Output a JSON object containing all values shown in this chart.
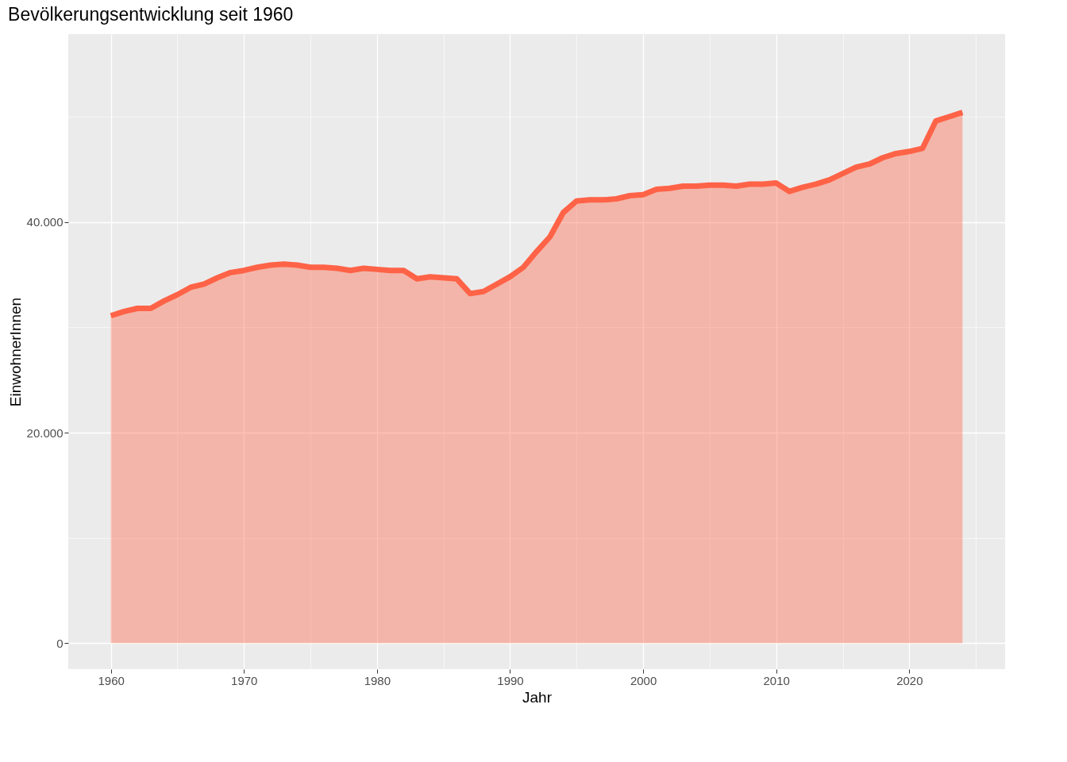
{
  "chart_data": {
    "type": "area",
    "title": "Bevölkerungsentwicklung seit 1960",
    "xlabel": "Jahr",
    "ylabel": "EinwohnerInnen",
    "x": [
      1960,
      1961,
      1962,
      1963,
      1964,
      1965,
      1966,
      1967,
      1968,
      1969,
      1970,
      1971,
      1972,
      1973,
      1974,
      1975,
      1976,
      1977,
      1978,
      1979,
      1980,
      1981,
      1982,
      1983,
      1984,
      1985,
      1986,
      1987,
      1988,
      1989,
      1990,
      1991,
      1992,
      1993,
      1994,
      1995,
      1996,
      1997,
      1998,
      1999,
      2000,
      2001,
      2002,
      2003,
      2004,
      2005,
      2006,
      2007,
      2008,
      2009,
      2010,
      2011,
      2012,
      2013,
      2014,
      2015,
      2016,
      2017,
      2018,
      2019,
      2020,
      2021,
      2022,
      2023,
      2024
    ],
    "series": [
      {
        "color": "#ff6347",
        "values": [
          31100,
          31500,
          31800,
          31800,
          32500,
          33100,
          33800,
          34100,
          34700,
          35200,
          35400,
          35700,
          35900,
          36000,
          35900,
          35700,
          35700,
          35600,
          35400,
          35600,
          35500,
          35400,
          35400,
          34600,
          34800,
          34700,
          34600,
          33200,
          33400,
          34100,
          34800,
          35700,
          37200,
          38600,
          40900,
          42000,
          42100,
          42100,
          42200,
          42500,
          42600,
          43100,
          43200,
          43400,
          43400,
          43500,
          43500,
          43400,
          43600,
          43600,
          43700,
          42900,
          43300,
          43600,
          44000,
          44600,
          45200,
          45500,
          46100,
          46500,
          46700,
          47000,
          49600,
          50000,
          50400
        ]
      }
    ],
    "xlim": [
      1956.8,
      2027.2
    ],
    "ylim": [
      -2460,
      57840
    ],
    "xticks": [
      1960,
      {
        "value": 1965,
        "label": null
      },
      1970,
      {
        "value": 1975,
        "label": null
      },
      1980,
      {
        "value": 1985,
        "label": null
      },
      1990,
      {
        "value": 1995,
        "label": null
      },
      2000,
      {
        "value": 2005,
        "label": null
      },
      2010,
      {
        "value": 2015,
        "label": null
      },
      2020,
      {
        "value": 2025,
        "label": null
      }
    ],
    "yticks": [
      {
        "value": 0,
        "label": "0"
      },
      {
        "value": 10000,
        "label": null
      },
      {
        "value": 20000,
        "label": "20.000"
      },
      {
        "value": 30000,
        "label": null
      },
      {
        "value": 40000,
        "label": "40.000"
      },
      {
        "value": 50000,
        "label": null
      }
    ],
    "grid": true
  }
}
